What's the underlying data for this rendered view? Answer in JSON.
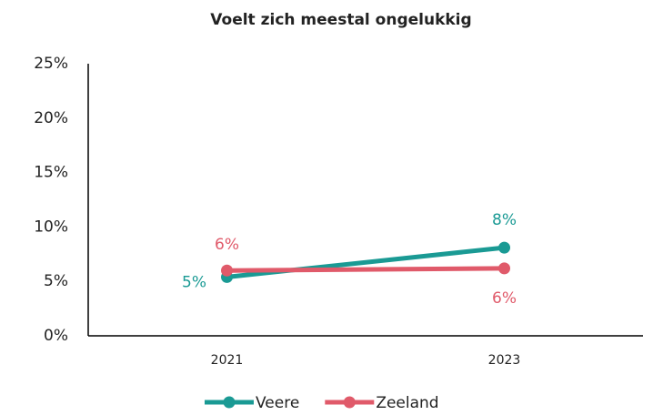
{
  "chart_data": {
    "type": "line",
    "title": "Voelt zich meestal ongelukkig",
    "categories": [
      "2021",
      "2023"
    ],
    "series": [
      {
        "name": "Veere",
        "color": "#1a9a94",
        "values": [
          5.4,
          8.1
        ],
        "value_labels": [
          "5%",
          "8%"
        ]
      },
      {
        "name": "Zeeland",
        "color": "#e05a6a",
        "values": [
          6.0,
          6.2
        ],
        "value_labels": [
          "6%",
          "6%"
        ]
      }
    ],
    "ylim": [
      0,
      25
    ],
    "yticks": [
      {
        "value": 0,
        "label": "0%"
      },
      {
        "value": 5,
        "label": "5%"
      },
      {
        "value": 10,
        "label": "10%"
      },
      {
        "value": 15,
        "label": "15%"
      },
      {
        "value": 20,
        "label": "20%"
      },
      {
        "value": 25,
        "label": "25%"
      }
    ],
    "grid": false,
    "legend": "bottom"
  }
}
